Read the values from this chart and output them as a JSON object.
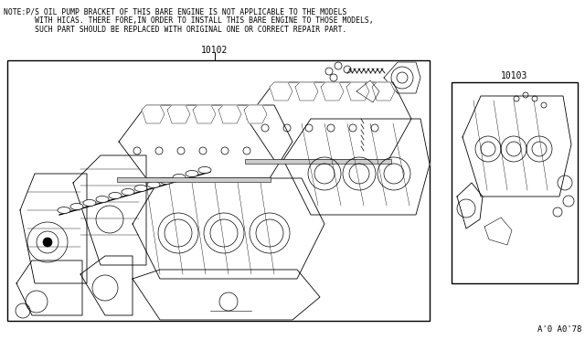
{
  "bg_color": "#ffffff",
  "border_color": "#000000",
  "text_color": "#000000",
  "note_line1": "NOTE:P/S OIL PUMP BRACKET OF THIS BARE ENGINE IS NOT APPLICABLE TO THE MODELS",
  "note_line2": "       WITH HICAS. THERE FORE,IN ORDER TO INSTALL THIS BARE ENGINE TO THOSE MODELS,",
  "note_line3": "       SUCH PART SHOULD BE REPLACED WITH ORIGINAL ONE OR CORRECT REPAIR PART.",
  "label_10102": "10102",
  "label_10103": "10103",
  "watermark": "A'0 A0'78",
  "font_size_note": 5.8,
  "font_size_labels": 7.0,
  "font_size_watermark": 6.5
}
